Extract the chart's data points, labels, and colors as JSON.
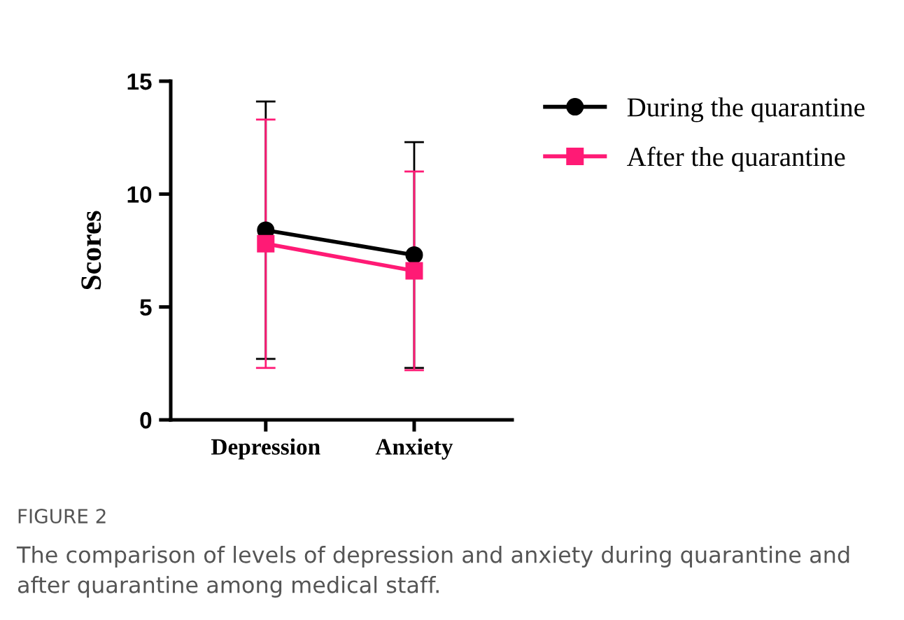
{
  "chart_data": {
    "type": "line",
    "ylabel": "Scores",
    "categories": [
      "Depression",
      "Anxiety"
    ],
    "series": [
      {
        "name": "During the quarantine",
        "color": "#000000",
        "values": [
          8.4,
          7.3
        ],
        "errors": [
          5.7,
          5.0
        ],
        "marker": "circle"
      },
      {
        "name": "After the quarantine",
        "color": "#ff1a75",
        "values": [
          7.8,
          6.6
        ],
        "errors": [
          5.5,
          4.4
        ],
        "marker": "square"
      }
    ],
    "ylim": [
      0,
      15
    ],
    "yticks": [
      0,
      5,
      10,
      15
    ],
    "grid": false,
    "legend": "top right",
    "line_style": "solid",
    "annotations": [
      "FIGURE 2",
      "The comparison of levels of depression and anxiety during quarantine and after quarantine among medical staff."
    ]
  }
}
